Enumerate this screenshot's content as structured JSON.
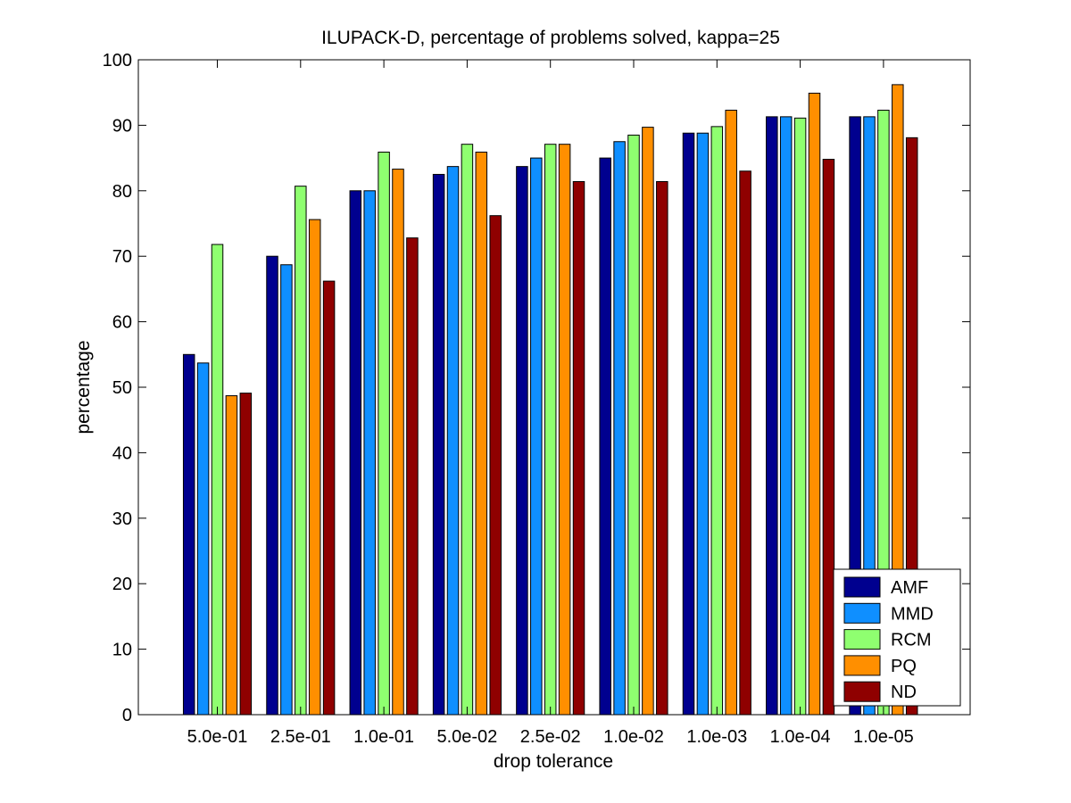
{
  "chart_data": {
    "type": "bar",
    "title": "ILUPACK-D, percentage of problems solved, kappa=25",
    "xlabel": "drop tolerance",
    "ylabel": "percentage",
    "ylim": [
      0,
      100
    ],
    "yticks": [
      0,
      10,
      20,
      30,
      40,
      50,
      60,
      70,
      80,
      90,
      100
    ],
    "grid": false,
    "legend_position": "bottom-right",
    "categories": [
      "5.0e-01",
      "2.5e-01",
      "1.0e-01",
      "5.0e-02",
      "2.5e-02",
      "1.0e-02",
      "1.0e-03",
      "1.0e-04",
      "1.0e-05"
    ],
    "series": [
      {
        "name": "AMF",
        "color": "#00008f",
        "values": [
          55.0,
          70.0,
          80.0,
          82.5,
          83.7,
          85.0,
          88.8,
          91.3,
          91.3
        ]
      },
      {
        "name": "MMD",
        "color": "#0f8fff",
        "values": [
          53.7,
          68.7,
          80.0,
          83.7,
          85.0,
          87.5,
          88.8,
          91.3,
          91.3
        ]
      },
      {
        "name": "RCM",
        "color": "#8fff70",
        "values": [
          71.8,
          80.7,
          85.9,
          87.1,
          87.1,
          88.5,
          89.8,
          91.1,
          92.3
        ]
      },
      {
        "name": "PQ",
        "color": "#ff8f00",
        "values": [
          48.7,
          75.6,
          83.3,
          85.9,
          87.1,
          89.7,
          92.3,
          94.9,
          96.2
        ]
      },
      {
        "name": "ND",
        "color": "#8f0000",
        "values": [
          49.1,
          66.2,
          72.8,
          76.2,
          81.4,
          81.4,
          83.0,
          84.8,
          88.1
        ]
      }
    ]
  }
}
